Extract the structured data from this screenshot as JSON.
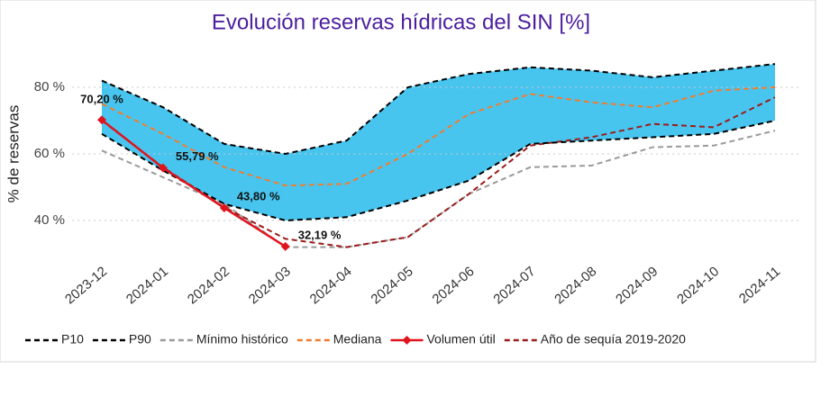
{
  "chart_data": {
    "type": "line",
    "title": "Evolución reservas hídricas del SIN [%]",
    "y_label": "% de reservas",
    "categories": [
      "2023-12",
      "2024-01",
      "2024-02",
      "2024-03",
      "2024-04",
      "2024-05",
      "2024-06",
      "2024-07",
      "2024-08",
      "2024-09",
      "2024-10",
      "2024-11"
    ],
    "ylim": [
      30,
      90
    ],
    "yticks": [
      {
        "value": 40,
        "label": "40 %"
      },
      {
        "value": 60,
        "label": "60 %"
      },
      {
        "value": 80,
        "label": "80 %"
      }
    ],
    "grid": true,
    "band_color": "#48c5ef",
    "series": [
      {
        "name": "P10",
        "color": "#000000",
        "dash": true,
        "values": [
          66,
          55,
          45,
          40,
          41,
          46,
          52,
          63,
          64,
          65,
          66,
          70
        ]
      },
      {
        "name": "P90",
        "color": "#000000",
        "dash": true,
        "values": [
          82,
          74,
          63,
          60,
          64,
          80,
          84,
          86,
          85,
          83,
          85,
          87
        ]
      },
      {
        "name": "Mínimo histórico",
        "color": "#9a9a9a",
        "dash": true,
        "values": [
          61,
          53,
          45,
          32,
          32,
          35,
          48,
          56,
          56.5,
          62,
          62.5,
          67
        ]
      },
      {
        "name": "Mediana",
        "color": "#ef7d31",
        "dash": true,
        "values": [
          75,
          66,
          56,
          50.5,
          51,
          60,
          72,
          78,
          75.5,
          74,
          79,
          80
        ]
      },
      {
        "name": "Volumen útil",
        "color": "#e0141e",
        "dash": false,
        "marker": "diamond",
        "values": [
          70.2,
          55.79,
          43.8,
          32.19,
          null,
          null,
          null,
          null,
          null,
          null,
          null,
          null
        ],
        "value_labels": [
          "70,20 %",
          "55,79 %",
          "43,80 %",
          "32,19 %",
          null,
          null,
          null,
          null,
          null,
          null,
          null,
          null
        ]
      },
      {
        "name": "Año de sequía 2019-2020",
        "color": "#9b1b1b",
        "dash": true,
        "values": [
          70,
          56,
          44,
          34.5,
          32,
          35,
          48,
          62.5,
          65,
          69,
          68,
          77
        ]
      }
    ]
  }
}
